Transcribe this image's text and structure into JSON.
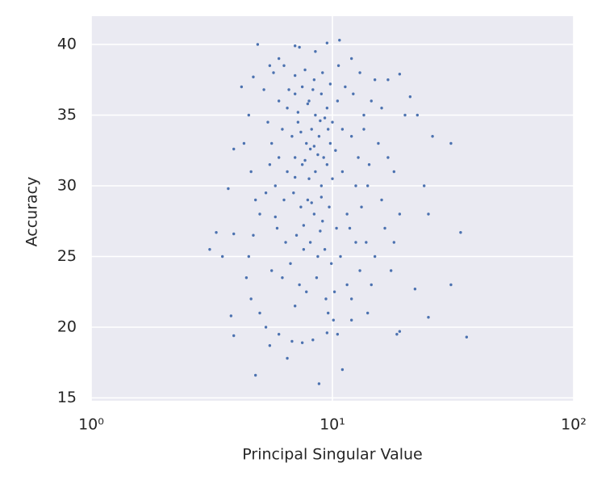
{
  "chart_data": {
    "type": "scatter",
    "x_label": "Principal Singular Value",
    "y_label": "Accuracy",
    "xscale": "log",
    "grid": true,
    "color": "#4c72b0",
    "background": "#eaeaf2",
    "xlim": [
      1,
      100
    ],
    "ylim": [
      14.8,
      42.0
    ],
    "xticks": [
      {
        "value": 1,
        "label": "10⁰"
      },
      {
        "value": 10,
        "label": "10¹"
      },
      {
        "value": 100,
        "label": "10²"
      }
    ],
    "yticks": [
      15,
      20,
      25,
      30,
      35,
      40
    ],
    "x": [
      3.1,
      3.3,
      3.5,
      3.7,
      3.8,
      3.9,
      3.9,
      3.9,
      4.8,
      8.8,
      11,
      6.5,
      36,
      31,
      34,
      31,
      25,
      24,
      22,
      25,
      19,
      18.5,
      21,
      19,
      17,
      20,
      22.5,
      26,
      10.7,
      9.5,
      4.9,
      7,
      7.3,
      6,
      8.5,
      5.5,
      4.7,
      4.2,
      12,
      13,
      15,
      14.5,
      16,
      13.5,
      15.5,
      17,
      18,
      14,
      16,
      19,
      4.5,
      4.3,
      4.6,
      4.8,
      5,
      4.7,
      4.5,
      4.4,
      4.6,
      5,
      5.3,
      5.5,
      6,
      6.8,
      7.5,
      8.3,
      9.5,
      10.5,
      12,
      14,
      6,
      6.5,
      7,
      7.5,
      8,
      8.5,
      9,
      9.5,
      10,
      10.5,
      6.2,
      6.8,
      7.2,
      7.8,
      8.2,
      8.8,
      9.2,
      9.8,
      10.3,
      11,
      6,
      6.5,
      7,
      7.5,
      8,
      8.5,
      9,
      9.5,
      10,
      11,
      5.8,
      6.3,
      6.9,
      7.4,
      7.9,
      8.4,
      9.1,
      9.7,
      10.4,
      11.5,
      5.9,
      6.4,
      7.1,
      7.6,
      8.1,
      8.7,
      9.3,
      9.9,
      10.8,
      12.5,
      5.6,
      6.2,
      6.7,
      7.3,
      7.8,
      8.6,
      9.4,
      10.2,
      11.5,
      13,
      5.7,
      6.3,
      7,
      7.7,
      8.4,
      9.1,
      9.8,
      10.6,
      11.3,
      12.2,
      5.2,
      5.4,
      5.6,
      5.5,
      5.3,
      5.8,
      12,
      12.8,
      13.5,
      14.2,
      12.5,
      13.2,
      11.8,
      13.8,
      15,
      16.5,
      17.5,
      12,
      14.5,
      18,
      6.6,
      7.2,
      7.9,
      8.3,
      8.9,
      9.6,
      7.4,
      8.1,
      8.7,
      9.3,
      7,
      7.7,
      8.4,
      9,
      7.6,
      8.2,
      8.9,
      9.6,
      10.1,
      7
    ],
    "values": [
      25.5,
      26.7,
      25,
      29.8,
      20.8,
      19.4,
      26.6,
      32.6,
      16.6,
      16,
      17,
      17.8,
      19.3,
      23,
      26.7,
      33,
      28,
      30,
      22.7,
      20.7,
      19.7,
      19.5,
      36.3,
      37.9,
      37.5,
      35,
      35,
      33.5,
      40.3,
      40.1,
      40,
      39.9,
      39.8,
      39,
      39.5,
      38.5,
      37.7,
      37,
      39,
      38,
      37.5,
      36,
      35.5,
      34,
      33,
      32,
      31,
      30,
      29,
      28,
      35,
      33,
      31,
      29,
      28,
      26.5,
      25,
      23.5,
      22,
      21,
      20,
      18.7,
      19.5,
      19,
      18.9,
      19.1,
      19.6,
      19.5,
      20.5,
      21,
      36,
      35.5,
      36.5,
      37,
      36,
      35,
      36.5,
      35.5,
      34.5,
      36,
      34,
      33.5,
      34.5,
      33,
      34,
      33.5,
      32,
      33,
      32.5,
      34,
      32,
      31,
      32,
      31.5,
      30.5,
      31,
      30,
      31.5,
      30.5,
      31,
      30,
      29,
      29.5,
      28.5,
      29,
      28,
      27.5,
      28.5,
      27,
      28,
      27,
      26,
      26.5,
      25.5,
      26,
      25,
      25.5,
      24.5,
      25,
      26,
      24,
      23.5,
      24.5,
      23,
      22.5,
      23.5,
      22,
      22.5,
      23,
      24,
      38,
      38.5,
      37.8,
      38.2,
      37.5,
      38,
      37.2,
      38.5,
      37,
      36.5,
      36.8,
      34.5,
      33,
      31.5,
      29.5,
      27.8,
      33.5,
      32,
      35,
      31.5,
      30,
      28.5,
      27,
      26,
      25,
      27,
      24,
      22,
      23,
      26,
      36.8,
      35.2,
      35.8,
      36.8,
      34.6,
      34,
      33.8,
      32.6,
      32.2,
      34.8,
      30.6,
      31.8,
      32.8,
      29.2,
      27.2,
      28.8,
      26.8,
      21,
      20.5,
      21.5
    ]
  }
}
